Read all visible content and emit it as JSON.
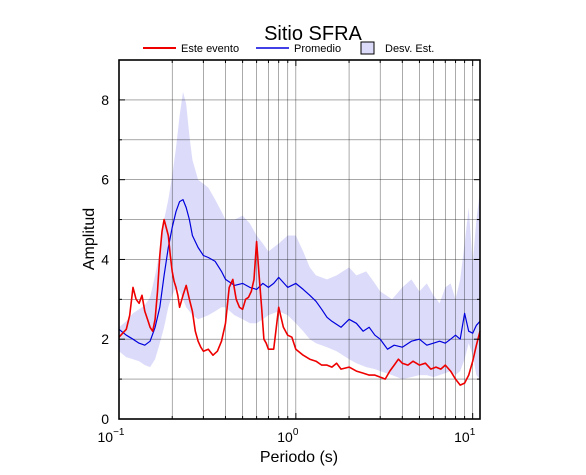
{
  "chart_data": {
    "type": "line",
    "title": "Sitio SFRA",
    "xlabel": "Periodo (s)",
    "ylabel": "Amplitud",
    "x_scale": "log",
    "xlim": [
      0.1,
      11
    ],
    "ylim": [
      0,
      9
    ],
    "grid": true,
    "legend_position": "top",
    "x_ticks": [
      {
        "value": 0.1,
        "base": "10",
        "exp": "−1"
      },
      {
        "value": 1,
        "base": "10",
        "exp": "0"
      },
      {
        "value": 10,
        "base": "10",
        "exp": "1"
      }
    ],
    "y_ticks": [
      "0",
      "2",
      "4",
      "6",
      "8"
    ],
    "legend": {
      "event_label": "Este evento",
      "mean_label": "Promedio",
      "band_label": "Desv. Est."
    },
    "colors": {
      "event": "#ee0000",
      "mean": "#0000dd",
      "band_fill": "#dcdcfa",
      "band_stroke": "#000000"
    },
    "std_band": {
      "x": [
        0.1,
        0.11,
        0.12,
        0.13,
        0.14,
        0.15,
        0.16,
        0.17,
        0.18,
        0.19,
        0.2,
        0.21,
        0.22,
        0.23,
        0.24,
        0.25,
        0.26,
        0.28,
        0.3,
        0.32,
        0.35,
        0.38,
        0.4,
        0.45,
        0.5,
        0.55,
        0.6,
        0.65,
        0.7,
        0.8,
        0.9,
        1.0,
        1.1,
        1.2,
        1.3,
        1.5,
        1.7,
        2.0,
        2.2,
        2.5,
        2.8,
        3.0,
        3.5,
        4.0,
        4.5,
        5.0,
        5.5,
        6.0,
        6.5,
        7.0,
        7.5,
        8.0,
        8.5,
        9.0,
        9.5,
        10.0,
        10.5,
        11.0
      ],
      "upper": [
        2.3,
        2.45,
        2.65,
        2.75,
        2.85,
        3.05,
        3.6,
        4.2,
        5.0,
        5.5,
        6.1,
        6.8,
        7.6,
        8.2,
        7.9,
        7.1,
        6.5,
        6.0,
        5.9,
        5.8,
        5.5,
        5.2,
        5.0,
        5.0,
        5.1,
        4.9,
        4.6,
        4.4,
        4.2,
        4.4,
        4.6,
        4.6,
        4.2,
        3.8,
        3.6,
        3.5,
        3.6,
        3.8,
        3.6,
        3.7,
        3.4,
        3.2,
        3.0,
        3.3,
        3.5,
        3.2,
        3.4,
        3.1,
        2.9,
        3.3,
        3.4,
        3.0,
        3.5,
        4.4,
        5.3,
        3.9,
        5.0,
        5.7
      ],
      "lower": [
        1.7,
        1.55,
        1.5,
        1.45,
        1.35,
        1.3,
        1.5,
        1.9,
        2.3,
        2.8,
        3.1,
        3.3,
        3.2,
        3.0,
        2.8,
        2.7,
        2.6,
        2.5,
        2.55,
        2.6,
        2.7,
        2.8,
        2.8,
        2.6,
        2.5,
        2.4,
        2.4,
        2.5,
        2.6,
        2.7,
        2.6,
        2.4,
        2.2,
        2.0,
        1.9,
        1.8,
        1.7,
        1.5,
        1.4,
        1.3,
        1.25,
        1.2,
        1.1,
        1.0,
        1.05,
        1.1,
        1.1,
        1.05,
        1.1,
        1.15,
        1.2,
        1.1,
        1.2,
        1.5,
        1.9,
        1.6,
        1.1,
        1.0
      ]
    },
    "series": [
      {
        "name": "Promedio",
        "x": [
          0.1,
          0.11,
          0.12,
          0.13,
          0.14,
          0.15,
          0.16,
          0.17,
          0.18,
          0.19,
          0.2,
          0.21,
          0.22,
          0.23,
          0.24,
          0.25,
          0.26,
          0.28,
          0.3,
          0.32,
          0.35,
          0.38,
          0.4,
          0.45,
          0.5,
          0.55,
          0.6,
          0.65,
          0.7,
          0.75,
          0.8,
          0.9,
          1.0,
          1.1,
          1.2,
          1.3,
          1.4,
          1.5,
          1.6,
          1.8,
          2.0,
          2.2,
          2.4,
          2.6,
          2.8,
          3.0,
          3.3,
          3.6,
          4.0,
          4.5,
          5.0,
          5.5,
          6.0,
          6.5,
          7.0,
          7.5,
          8.0,
          8.5,
          9.0,
          9.5,
          10.0,
          10.5,
          11.0
        ],
        "values": [
          2.25,
          2.1,
          2.0,
          1.9,
          1.85,
          1.95,
          2.3,
          2.8,
          3.6,
          4.3,
          4.8,
          5.2,
          5.45,
          5.5,
          5.3,
          5.0,
          4.6,
          4.3,
          4.1,
          4.05,
          3.95,
          3.7,
          3.5,
          3.35,
          3.4,
          3.3,
          3.25,
          3.4,
          3.3,
          3.4,
          3.55,
          3.3,
          3.4,
          3.25,
          3.1,
          2.95,
          2.75,
          2.55,
          2.45,
          2.3,
          2.5,
          2.4,
          2.2,
          2.3,
          2.1,
          2.0,
          1.75,
          1.85,
          1.8,
          1.95,
          2.0,
          1.85,
          1.9,
          1.95,
          1.9,
          2.0,
          2.1,
          2.0,
          2.65,
          2.2,
          2.15,
          2.35,
          2.45
        ]
      },
      {
        "name": "Este evento",
        "x": [
          0.1,
          0.105,
          0.11,
          0.115,
          0.12,
          0.125,
          0.13,
          0.135,
          0.14,
          0.145,
          0.15,
          0.155,
          0.16,
          0.165,
          0.17,
          0.175,
          0.18,
          0.185,
          0.19,
          0.195,
          0.2,
          0.205,
          0.21,
          0.215,
          0.22,
          0.23,
          0.24,
          0.25,
          0.26,
          0.27,
          0.28,
          0.29,
          0.3,
          0.32,
          0.34,
          0.36,
          0.38,
          0.4,
          0.42,
          0.44,
          0.46,
          0.48,
          0.5,
          0.52,
          0.54,
          0.56,
          0.58,
          0.6,
          0.62,
          0.64,
          0.66,
          0.68,
          0.7,
          0.75,
          0.8,
          0.85,
          0.9,
          0.95,
          1.0,
          1.1,
          1.2,
          1.3,
          1.4,
          1.5,
          1.6,
          1.7,
          1.8,
          2.0,
          2.2,
          2.4,
          2.6,
          2.8,
          3.0,
          3.2,
          3.4,
          3.6,
          3.8,
          4.0,
          4.3,
          4.6,
          5.0,
          5.4,
          5.8,
          6.2,
          6.6,
          7.0,
          7.5,
          8.0,
          8.5,
          9.0,
          9.5,
          10.0,
          10.5,
          11.0
        ],
        "values": [
          2.05,
          2.15,
          2.25,
          2.6,
          3.3,
          3.0,
          2.9,
          3.1,
          2.7,
          2.5,
          2.3,
          2.2,
          2.5,
          3.2,
          4.1,
          4.7,
          5.0,
          4.8,
          4.6,
          4.1,
          3.7,
          3.45,
          3.3,
          3.1,
          2.8,
          3.1,
          3.35,
          3.0,
          2.7,
          2.2,
          1.95,
          1.8,
          1.7,
          1.75,
          1.6,
          1.7,
          1.95,
          2.4,
          3.3,
          3.5,
          3.0,
          2.8,
          2.75,
          3.0,
          3.05,
          3.2,
          3.5,
          4.45,
          3.6,
          2.8,
          2.0,
          1.9,
          1.75,
          1.75,
          2.8,
          2.3,
          2.1,
          2.05,
          1.75,
          1.6,
          1.5,
          1.45,
          1.35,
          1.35,
          1.3,
          1.4,
          1.25,
          1.3,
          1.2,
          1.15,
          1.1,
          1.1,
          1.05,
          1.0,
          1.2,
          1.35,
          1.5,
          1.4,
          1.35,
          1.45,
          1.35,
          1.4,
          1.25,
          1.3,
          1.25,
          1.35,
          1.2,
          1.0,
          0.85,
          0.9,
          1.1,
          1.45,
          1.85,
          2.2
        ]
      }
    ]
  }
}
